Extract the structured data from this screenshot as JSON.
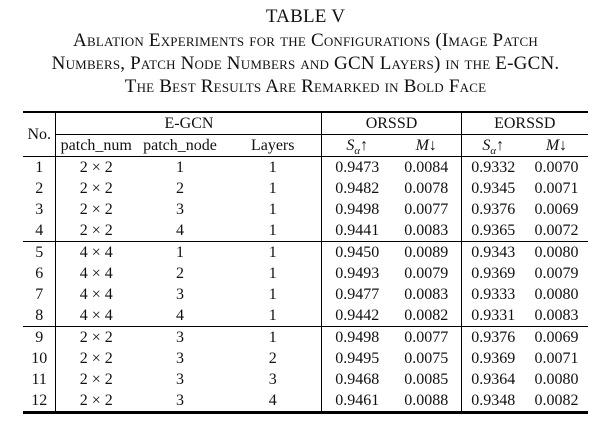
{
  "colors": {
    "text": "#111111",
    "rule": "#000000",
    "background": "#ffffff"
  },
  "caption": {
    "title": "TABLE V",
    "lines": [
      "Ablation Experiments for the Configurations (Image Patch",
      "Numbers, Patch Node Numbers and GCN Layers) in the E-GCN.",
      "The Best Results Are Remarked in Bold Face"
    ]
  },
  "table": {
    "header": {
      "no": "No.",
      "groups": {
        "egcn": "E-GCN",
        "orssd": "ORSSD",
        "eorssd": "EORSSD"
      },
      "subcols": {
        "patch_num": "patch_num",
        "patch_node": "patch_node",
        "layers": "Layers"
      },
      "metric_s": {
        "base": "S",
        "sub": "α",
        "arrow": "↑"
      },
      "metric_m": {
        "base": "M",
        "arrow": "↓"
      }
    },
    "group_breaks": [
      4,
      8
    ],
    "rows": [
      {
        "no": "1",
        "patch_num": "2 × 2",
        "patch_node": "1",
        "layers": "1",
        "orssd_s": "0.9473",
        "orssd_m": "0.0084",
        "eorssd_s": "0.9332",
        "eorssd_m": "0.0070",
        "bold": []
      },
      {
        "no": "2",
        "patch_num": "2 × 2",
        "patch_node": "2",
        "layers": "1",
        "orssd_s": "0.9482",
        "orssd_m": "0.0078",
        "eorssd_s": "0.9345",
        "eorssd_m": "0.0071",
        "bold": []
      },
      {
        "no": "3",
        "patch_num": "2 × 2",
        "patch_node": "3",
        "layers": "1",
        "orssd_s": "0.9498",
        "orssd_m": "0.0077",
        "eorssd_s": "0.9376",
        "eorssd_m": "0.0069",
        "bold": [
          "orssd_s",
          "orssd_m",
          "eorssd_s",
          "eorssd_m"
        ]
      },
      {
        "no": "4",
        "patch_num": "2 × 2",
        "patch_node": "4",
        "layers": "1",
        "orssd_s": "0.9441",
        "orssd_m": "0.0083",
        "eorssd_s": "0.9365",
        "eorssd_m": "0.0072",
        "bold": []
      },
      {
        "no": "5",
        "patch_num": "4 × 4",
        "patch_node": "1",
        "layers": "1",
        "orssd_s": "0.9450",
        "orssd_m": "0.0089",
        "eorssd_s": "0.9343",
        "eorssd_m": "0.0080",
        "bold": []
      },
      {
        "no": "6",
        "patch_num": "4 × 4",
        "patch_node": "2",
        "layers": "1",
        "orssd_s": "0.9493",
        "orssd_m": "0.0079",
        "eorssd_s": "0.9369",
        "eorssd_m": "0.0079",
        "bold": []
      },
      {
        "no": "7",
        "patch_num": "4 × 4",
        "patch_node": "3",
        "layers": "1",
        "orssd_s": "0.9477",
        "orssd_m": "0.0083",
        "eorssd_s": "0.9333",
        "eorssd_m": "0.0080",
        "bold": []
      },
      {
        "no": "8",
        "patch_num": "4 × 4",
        "patch_node": "4",
        "layers": "1",
        "orssd_s": "0.9442",
        "orssd_m": "0.0082",
        "eorssd_s": "0.9331",
        "eorssd_m": "0.0083",
        "bold": []
      },
      {
        "no": "9",
        "patch_num": "2 × 2",
        "patch_node": "3",
        "layers": "1",
        "orssd_s": "0.9498",
        "orssd_m": "0.0077",
        "eorssd_s": "0.9376",
        "eorssd_m": "0.0069",
        "bold": [
          "orssd_s",
          "eorssd_s",
          "eorssd_m"
        ]
      },
      {
        "no": "10",
        "patch_num": "2 × 2",
        "patch_node": "3",
        "layers": "2",
        "orssd_s": "0.9495",
        "orssd_m": "0.0075",
        "eorssd_s": "0.9369",
        "eorssd_m": "0.0071",
        "bold": [
          "orssd_m"
        ]
      },
      {
        "no": "11",
        "patch_num": "2 × 2",
        "patch_node": "3",
        "layers": "3",
        "orssd_s": "0.9468",
        "orssd_m": "0.0085",
        "eorssd_s": "0.9364",
        "eorssd_m": "0.0080",
        "bold": []
      },
      {
        "no": "12",
        "patch_num": "2 × 2",
        "patch_node": "3",
        "layers": "4",
        "orssd_s": "0.9461",
        "orssd_m": "0.0088",
        "eorssd_s": "0.9348",
        "eorssd_m": "0.0082",
        "bold": []
      }
    ]
  }
}
